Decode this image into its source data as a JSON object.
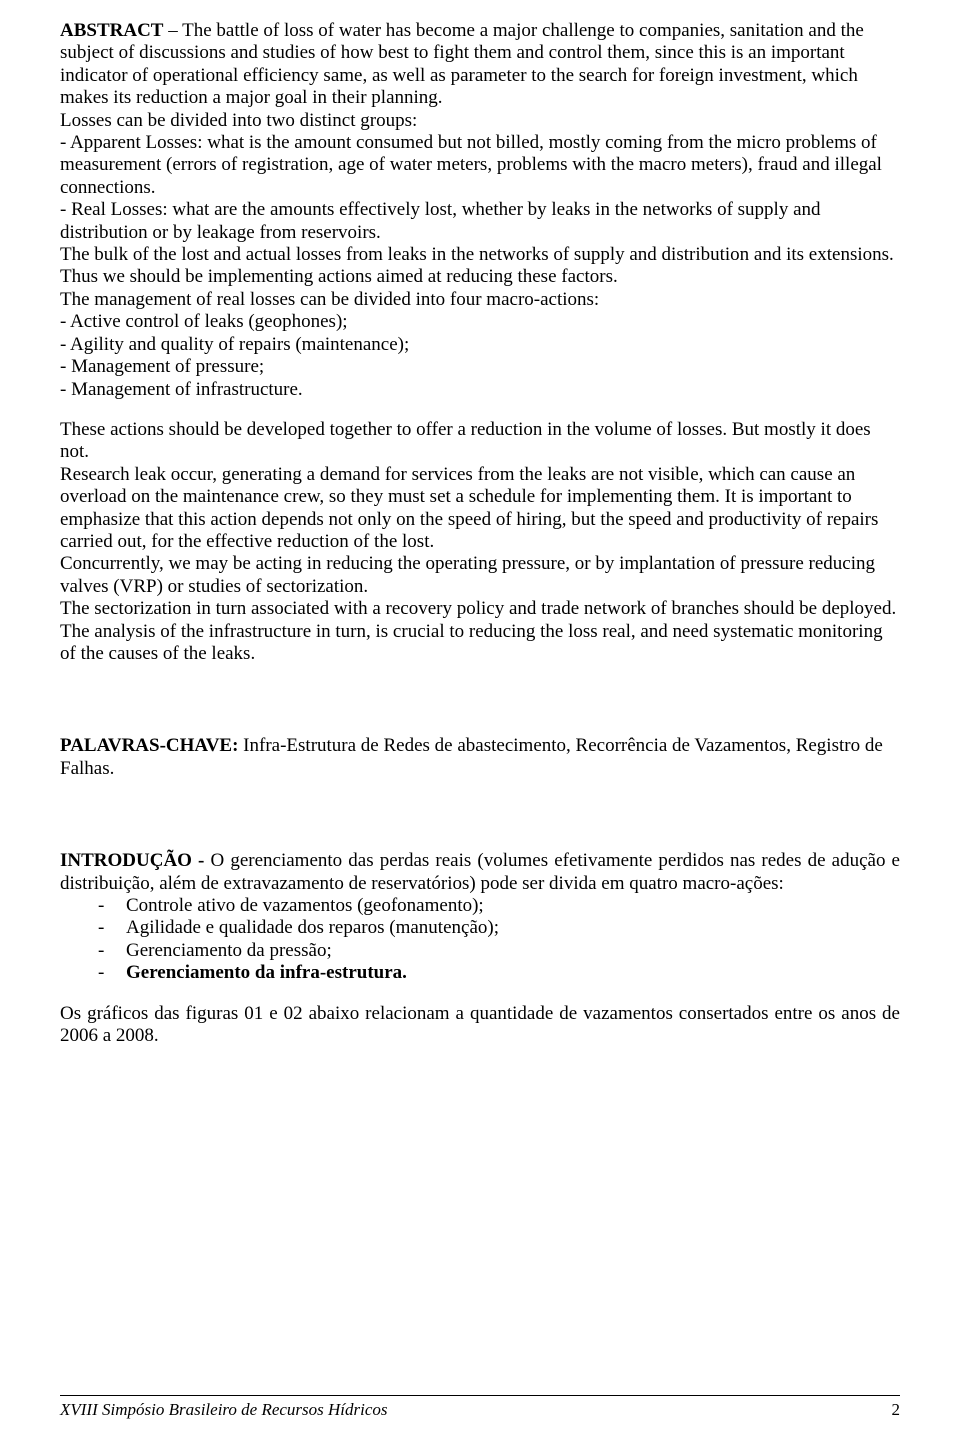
{
  "abstract": {
    "label": "ABSTRACT",
    "body": " – The battle of loss of water has become a major challenge to companies, sanitation and the subject of discussions and studies of how best to fight them and control them, since this is an important indicator of operational efficiency same, as well as parameter to the search for foreign investment, which makes its reduction a major goal in their planning.",
    "losses_intro": "Losses can be divided into two distinct groups:",
    "apparent": "- Apparent Losses: what is the amount consumed but not billed, mostly coming from the micro problems of measurement (errors of registration, age of water meters, problems with the macro meters), fraud and illegal connections.",
    "real": "- Real Losses: what are the amounts effectively lost, whether by leaks in the networks of supply and distribution or by leakage from reservoirs.",
    "bulk": "The bulk of the lost and actual losses from leaks in the networks of supply and distribution and its extensions.",
    "thus": "Thus we should be implementing actions aimed at reducing these factors.",
    "mgmt_intro": "The management of real losses can be divided into four macro-actions:",
    "mgmt_items": [
      "- Active control of leaks (geophones);",
      "- Agility and quality of repairs (maintenance);",
      "- Management of pressure;",
      "- Management of infrastructure."
    ],
    "actions": "These actions should be developed together to offer a reduction in the volume of losses. But mostly it does not.",
    "research": "Research leak occur, generating a demand for services from the leaks are not visible, which can cause an overload on the maintenance crew, so they must set a schedule for implementing them. It is important to emphasize that this action depends not only on the speed of hiring, but the speed and productivity of repairs carried out, for the effective reduction of the lost.",
    "concurrently": "Concurrently, we may be acting in reducing the operating pressure, or by implantation of pressure reducing valves (VRP) or studies of sectorization.",
    "sector": "The sectorization in turn associated with a recovery policy and trade network of branches should be deployed.",
    "analysis": "The analysis of the infrastructure in turn, is crucial to reducing the loss real, and need systematic monitoring of the causes of the leaks."
  },
  "palavras": {
    "label": "PALAVRAS-CHAVE:",
    "body": " Infra-Estrutura de Redes de abastecimento, Recorrência de Vazamentos, Registro de Falhas."
  },
  "introducao": {
    "label": "INTRODUÇÃO - ",
    "body": "O gerenciamento das perdas reais (volumes efetivamente perdidos nas redes de adução e distribuição, além de extravazamento de reservatórios) pode ser divida em quatro macro-ações:",
    "items": [
      {
        "text": "Controle ativo de vazamentos (geofonamento);",
        "bold": false
      },
      {
        "text": "Agilidade e qualidade dos reparos (manutenção);",
        "bold": false
      },
      {
        "text": "Gerenciamento da pressão;",
        "bold": false
      },
      {
        "text": "Gerenciamento da infra-estrutura.",
        "bold": true
      }
    ],
    "charts_line": "Os gráficos das figuras 01 e 02 abaixo relacionam a quantidade de vazamentos consertados entre os anos de 2006 a 2008."
  },
  "footer": {
    "title": "XVIII Simpósio Brasileiro de Recursos Hídricos",
    "page": "2"
  }
}
